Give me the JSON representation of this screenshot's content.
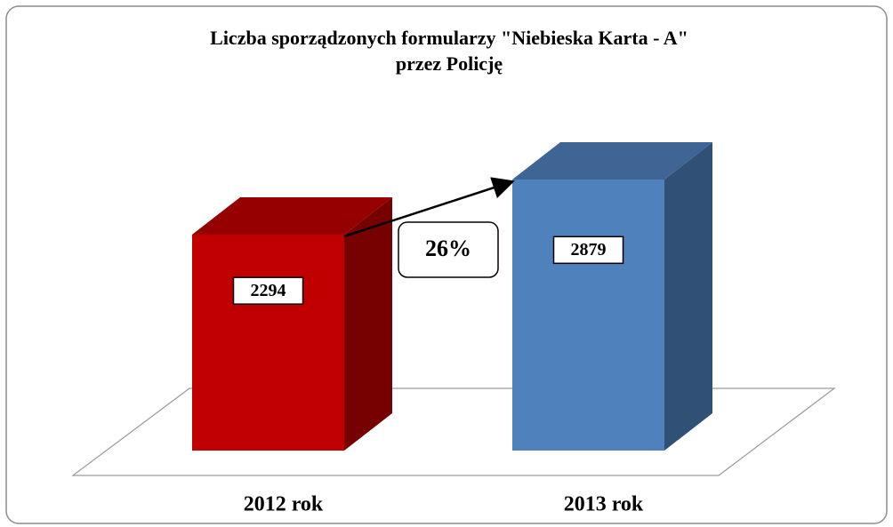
{
  "chart_data": {
    "type": "bar3d",
    "title": [
      "Liczba sporządzonych formularzy  \"Niebieska Karta - A\"",
      "przez Policję"
    ],
    "categories": [
      "2012 rok",
      "2013 rok"
    ],
    "values": [
      2294,
      2879
    ],
    "colors": [
      "#c00000",
      "#4f81bd"
    ],
    "annotation": "26%"
  }
}
